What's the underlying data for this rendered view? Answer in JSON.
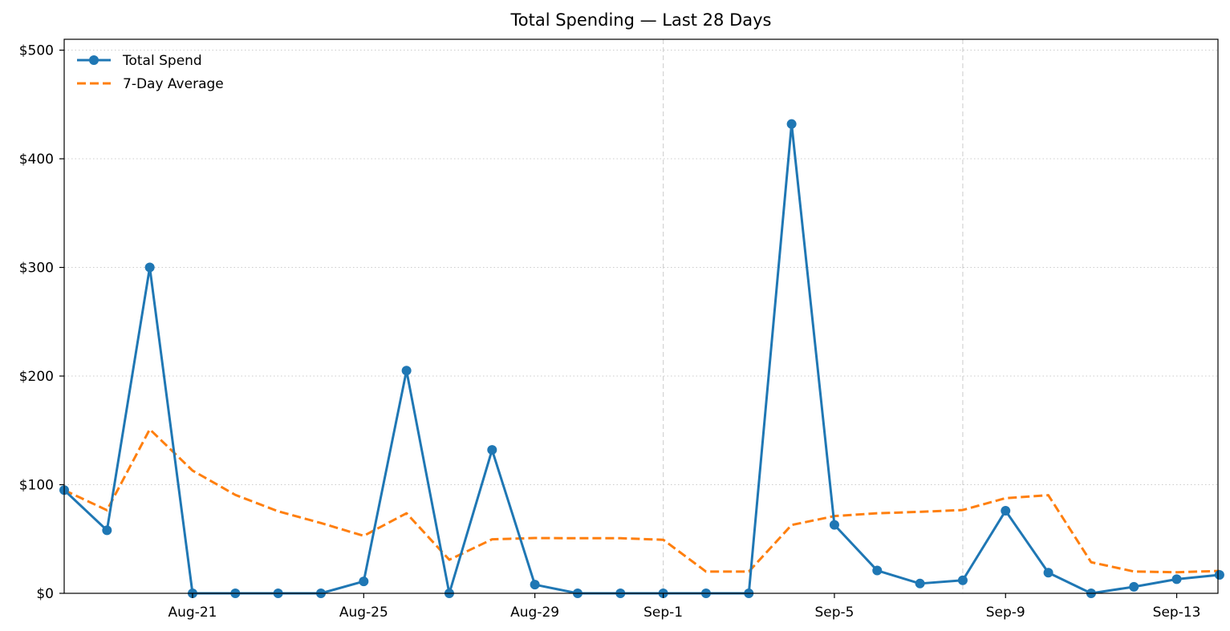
{
  "chart_data": {
    "type": "line",
    "title": "Total Spending — Last 28 Days",
    "xlabel": "",
    "ylabel": "",
    "x": [
      "Aug-18",
      "Aug-19",
      "Aug-20",
      "Aug-21",
      "Aug-22",
      "Aug-23",
      "Aug-24",
      "Aug-25",
      "Aug-26",
      "Aug-27",
      "Aug-28",
      "Aug-29",
      "Aug-30",
      "Aug-31",
      "Sep-1",
      "Sep-2",
      "Sep-3",
      "Sep-4",
      "Sep-5",
      "Sep-6",
      "Sep-7",
      "Sep-8",
      "Sep-9",
      "Sep-10",
      "Sep-11",
      "Sep-12",
      "Sep-13",
      "Sep-14"
    ],
    "x_ticks": [
      "Aug-21",
      "Aug-25",
      "Aug-29",
      "Sep-1",
      "Sep-5",
      "Sep-9",
      "Sep-13"
    ],
    "y_ticks": [
      "$0",
      "$100",
      "$200",
      "$300",
      "$400",
      "$500"
    ],
    "ylim": [
      0,
      510
    ],
    "vertical_markers": [
      "Sep-1",
      "Sep-8"
    ],
    "grid": "horizontal dotted",
    "legend_position": "top-left",
    "series": [
      {
        "name": "Total Spend",
        "color": "#1f77b4",
        "style": "solid-with-markers",
        "values": [
          95,
          58,
          300,
          0,
          0,
          0,
          0,
          11,
          205,
          0,
          132,
          8,
          0,
          0,
          0,
          0,
          0,
          432,
          63,
          21,
          9,
          12,
          76,
          19,
          0,
          6,
          13,
          17
        ]
      },
      {
        "name": "7-Day Average",
        "color": "#ff7f0e",
        "style": "dashed",
        "values": [
          95,
          76.5,
          151,
          113,
          90.6,
          75.5,
          64.7,
          52.9,
          73.7,
          30.9,
          49.7,
          50.9,
          50.7,
          50.7,
          49.3,
          20,
          20,
          62.9,
          71.1,
          73.7,
          75,
          76.7,
          87.6,
          90.3,
          28.6,
          20.1,
          19.4,
          20.6
        ]
      }
    ]
  }
}
